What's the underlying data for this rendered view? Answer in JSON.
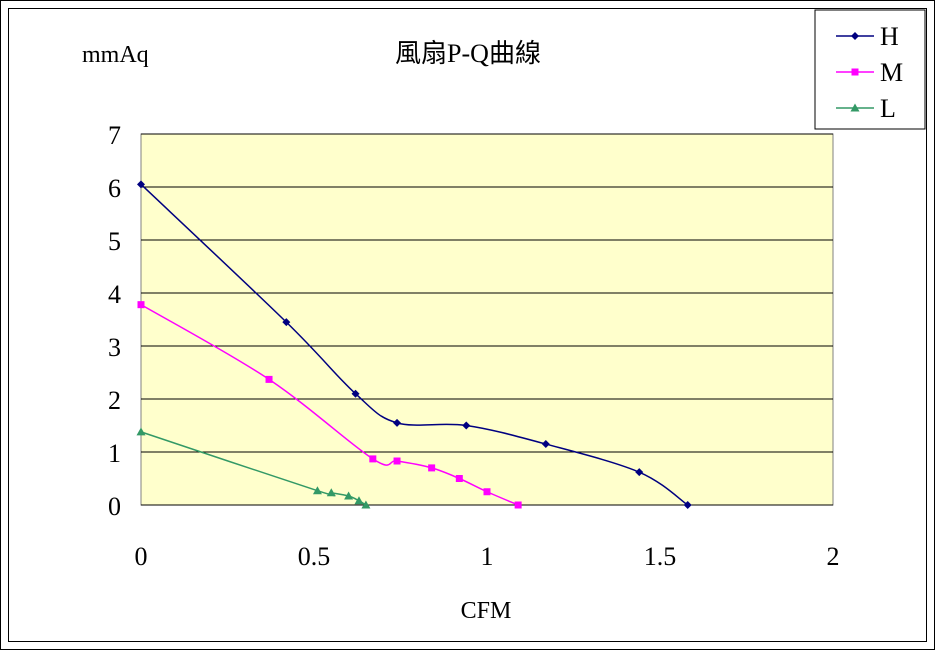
{
  "chart_data": {
    "type": "line",
    "title": "風扇P-Q曲線",
    "xlabel": "CFM",
    "ylabel": "mmAq",
    "xlim": [
      0,
      2
    ],
    "ylim": [
      0,
      7
    ],
    "x_ticks": [
      "0",
      "0.5",
      "1",
      "1.5",
      "2"
    ],
    "y_ticks": [
      "0",
      "1",
      "2",
      "3",
      "4",
      "5",
      "6",
      "7"
    ],
    "grid": true,
    "legend": "top-right",
    "plot_background": "#FFFFCC",
    "series": [
      {
        "name": "H",
        "color": "#000080",
        "marker": "diamond",
        "points": [
          [
            0,
            6.05
          ],
          [
            0.42,
            3.45
          ],
          [
            0.62,
            2.1
          ],
          [
            0.74,
            1.55
          ],
          [
            0.94,
            1.5
          ],
          [
            1.17,
            1.15
          ],
          [
            1.44,
            0.62
          ],
          [
            1.58,
            0
          ]
        ]
      },
      {
        "name": "M",
        "color": "#FF00FF",
        "marker": "square",
        "points": [
          [
            0,
            3.78
          ],
          [
            0.37,
            2.37
          ],
          [
            0.67,
            0.87
          ],
          [
            0.74,
            0.83
          ],
          [
            0.84,
            0.7
          ],
          [
            0.92,
            0.5
          ],
          [
            1.0,
            0.25
          ],
          [
            1.09,
            0
          ]
        ]
      },
      {
        "name": "L",
        "color": "#339966",
        "marker": "triangle",
        "points": [
          [
            0,
            1.38
          ],
          [
            0.51,
            0.27
          ],
          [
            0.55,
            0.23
          ],
          [
            0.6,
            0.17
          ],
          [
            0.63,
            0.08
          ],
          [
            0.65,
            0.0
          ]
        ]
      }
    ]
  }
}
